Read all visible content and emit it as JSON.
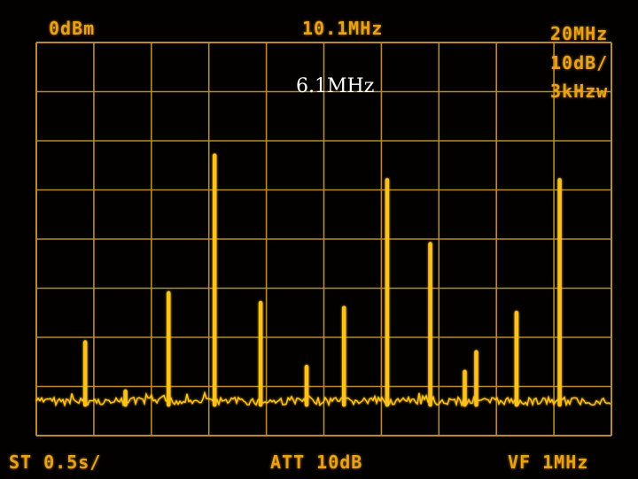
{
  "colors": {
    "trace": "#ffc21e",
    "graticule": "#b88a2c",
    "readout": "#e8a21a",
    "background": "#020100",
    "marker_text": "#ffffff"
  },
  "readouts": {
    "reference_level": "0dBm",
    "center_frequency": "10.1MHz",
    "span": "20MHz",
    "scale": "10dB/",
    "resolution_bandwidth": "3kHzw",
    "sweep_time": "ST 0.5s/",
    "attenuation": "ATT 10dB",
    "video_filter": "VF 1MHz"
  },
  "marker": {
    "label": "6.1MHz"
  },
  "chart_data": {
    "type": "line",
    "x_unit": "MHz",
    "y_unit": "dBm",
    "xlim": [
      0.1,
      20.1
    ],
    "ylim": [
      -80,
      0
    ],
    "grid": true,
    "noise_floor_dBm": -73,
    "peaks": [
      {
        "freq": 1.8,
        "level": -61
      },
      {
        "freq": 3.2,
        "level": -71
      },
      {
        "freq": 4.7,
        "level": -51
      },
      {
        "freq": 6.3,
        "level": -23
      },
      {
        "freq": 7.9,
        "level": -53
      },
      {
        "freq": 9.5,
        "level": -66
      },
      {
        "freq": 10.8,
        "level": -54
      },
      {
        "freq": 12.3,
        "level": -28
      },
      {
        "freq": 13.8,
        "level": -41
      },
      {
        "freq": 15.0,
        "level": -67
      },
      {
        "freq": 15.4,
        "level": -63
      },
      {
        "freq": 16.8,
        "level": -55
      },
      {
        "freq": 18.3,
        "level": -28
      }
    ]
  }
}
